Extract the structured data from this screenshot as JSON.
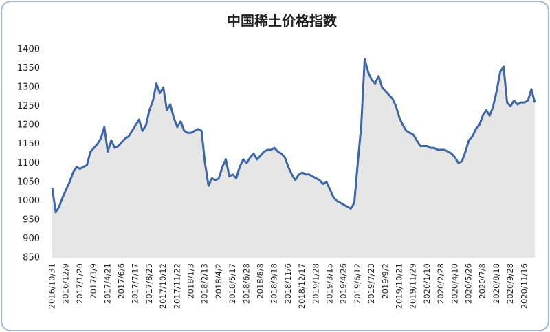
{
  "chart_data": {
    "type": "area-line",
    "title": "中国稀土价格指数",
    "categories": [
      "2016/10/31",
      null,
      null,
      null,
      "2016/12/9",
      null,
      null,
      null,
      "2017/1/20",
      null,
      null,
      null,
      "2017/3/9",
      null,
      null,
      null,
      "2017/4/21",
      null,
      null,
      null,
      "2017/6/6",
      null,
      null,
      null,
      "2017/7/17",
      null,
      null,
      null,
      "2017/8/25",
      null,
      null,
      null,
      "2017/10/12",
      null,
      null,
      null,
      "2017/11/22",
      null,
      null,
      null,
      "2018/1/3",
      null,
      null,
      null,
      "2018/2/13",
      null,
      null,
      null,
      "2018/4/2",
      null,
      null,
      null,
      "2018/5/17",
      null,
      null,
      null,
      "2018/6/28",
      null,
      null,
      null,
      "2018/8/8",
      null,
      null,
      null,
      "2018/9/18",
      null,
      null,
      null,
      "2018/11/6",
      null,
      null,
      null,
      "2018/12/17",
      null,
      null,
      null,
      "2019/1/28",
      null,
      null,
      null,
      "2019/3/15",
      null,
      null,
      null,
      "2019/4/26",
      null,
      null,
      null,
      "2019/6/12",
      null,
      null,
      null,
      "2019/7/23",
      null,
      null,
      null,
      "2019/9/2",
      null,
      null,
      null,
      "2019/10/21",
      null,
      null,
      null,
      "2019/11/29",
      null,
      null,
      null,
      "2020/1/10",
      null,
      null,
      null,
      "2020/2/28",
      null,
      null,
      null,
      "2020/4/10",
      null,
      null,
      null,
      "2020/5/26",
      null,
      null,
      null,
      "2020/7/8",
      null,
      null,
      null,
      "2020/8/18",
      null,
      null,
      null,
      "2020/9/28",
      null,
      null,
      null,
      "2020/11/16",
      null,
      null,
      null
    ],
    "values": [
      1035,
      970,
      985,
      1010,
      1030,
      1050,
      1075,
      1090,
      1085,
      1090,
      1095,
      1130,
      1140,
      1150,
      1165,
      1195,
      1130,
      1160,
      1140,
      1145,
      1155,
      1165,
      1170,
      1185,
      1200,
      1215,
      1185,
      1200,
      1240,
      1265,
      1310,
      1285,
      1300,
      1240,
      1255,
      1220,
      1195,
      1210,
      1185,
      1180,
      1180,
      1185,
      1190,
      1185,
      1100,
      1040,
      1060,
      1055,
      1060,
      1090,
      1110,
      1065,
      1070,
      1060,
      1090,
      1110,
      1100,
      1115,
      1125,
      1110,
      1120,
      1130,
      1135,
      1135,
      1140,
      1130,
      1125,
      1115,
      1090,
      1070,
      1055,
      1070,
      1075,
      1070,
      1070,
      1065,
      1060,
      1055,
      1045,
      1050,
      1030,
      1010,
      1000,
      995,
      990,
      985,
      980,
      995,
      1100,
      1200,
      1375,
      1340,
      1320,
      1310,
      1330,
      1300,
      1290,
      1280,
      1270,
      1250,
      1220,
      1200,
      1185,
      1180,
      1175,
      1160,
      1145,
      1145,
      1145,
      1140,
      1140,
      1135,
      1135,
      1135,
      1130,
      1125,
      1115,
      1100,
      1105,
      1130,
      1160,
      1170,
      1190,
      1200,
      1225,
      1240,
      1225,
      1250,
      1290,
      1340,
      1355,
      1260,
      1250,
      1265,
      1255,
      1260,
      1260,
      1265,
      1295,
      1260
    ],
    "color": "#3e67a8",
    "area_color": "#e6e6e6",
    "ylim": [
      850,
      1400
    ],
    "yticks": [
      850,
      900,
      950,
      1000,
      1050,
      1100,
      1150,
      1200,
      1250,
      1300,
      1350,
      1400
    ],
    "grid": false
  }
}
